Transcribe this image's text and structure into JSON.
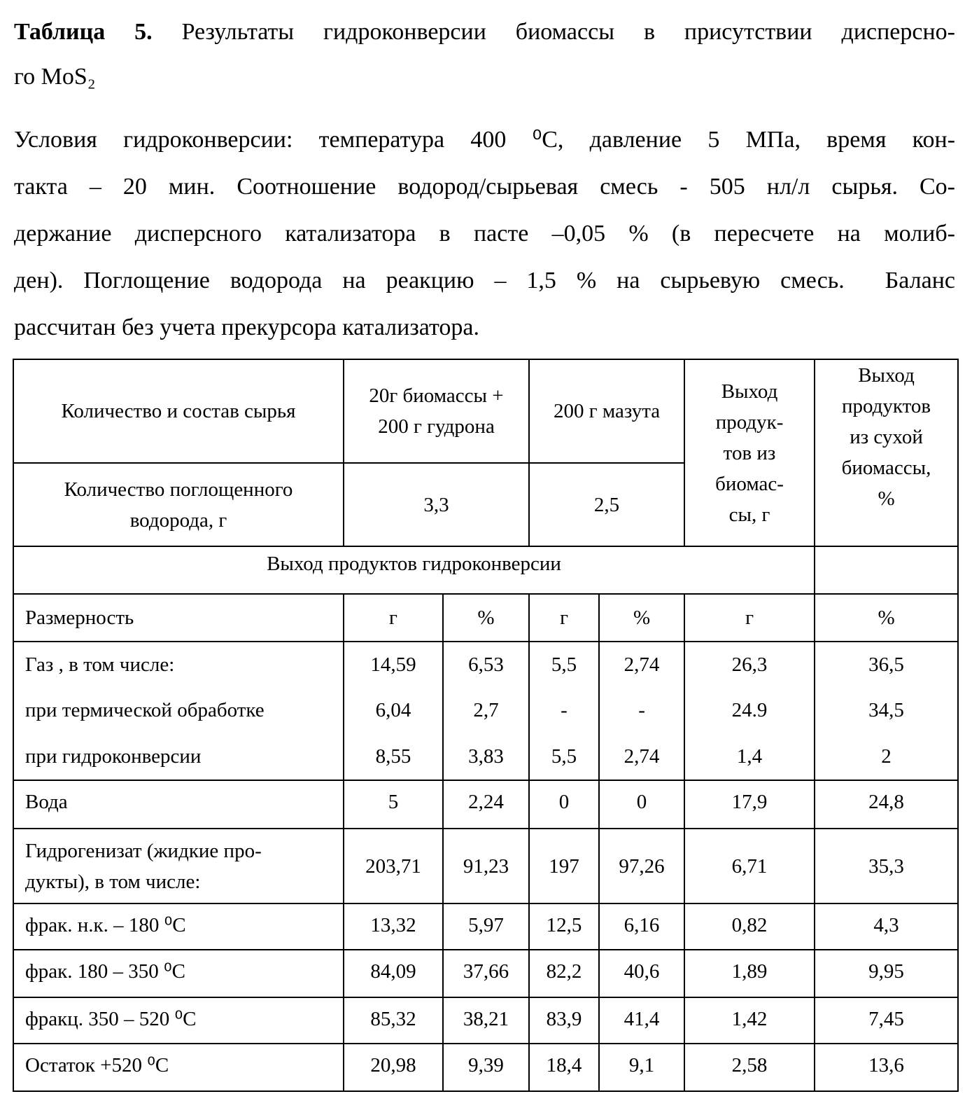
{
  "header": {
    "label": "Таблица 5.",
    "lines": [
      "Результаты гидроконверсии биомассы в присутствии дисперсно-",
      "го  MoS₂"
    ]
  },
  "conditions": {
    "lines": [
      "Условия гидроконверсии: температура 400 ⁰С, давление 5 МПа, время кон-",
      "такта – 20 мин. Соотношение водород/сырьевая смесь - 505 нл/л сырья. Со-",
      "держание дисперсного катализатора в пасте –0,05 % (в пересчете на молиб-",
      "ден). Поглощение водорода на реакцию – 1,5 % на сырьевую смесь.  Баланс",
      "рассчитан без учета прекурсора катализатора."
    ]
  },
  "table": {
    "feed_label": "Количество и состав  сырья",
    "feed_1": "20г биомассы +\n200 г гудрона",
    "feed_2": "200 г мазута",
    "yield_biomass": "Выход\nпродук-\nтов из\nбиомас-\nсы, г",
    "yield_dry": "Выход\nпродуктов\nиз сухой\nбиомассы,\n%",
    "hydrogen_label": "Количество поглощенного\nводорода, г",
    "hydrogen_1": "3,3",
    "hydrogen_2": "2,5",
    "section": "Выход продуктов гидроконверсии",
    "units_label": "Размерность",
    "units": [
      "г",
      "%",
      "г",
      "%",
      "г",
      "%"
    ],
    "gas_rows": [
      [
        "Газ , в том числе:",
        "14,59",
        "6,53",
        "5,5",
        "2,74",
        "26,3",
        "36,5"
      ],
      [
        " при термической обработке",
        "6,04",
        "2,7",
        "-",
        "-",
        "24.9",
        "34,5"
      ],
      [
        "при гидроконверсии",
        "8,55",
        "3,83",
        "5,5",
        "2,74",
        "1,4",
        "2"
      ]
    ],
    "rows": [
      [
        "Вода",
        "5",
        "2,24",
        "0",
        "0",
        "17,9",
        "24,8"
      ],
      [
        "Гидрогенизат (жидкие про-\nдукты), в том числе:",
        "203,71",
        "91,23",
        "197",
        "97,26",
        "6,71",
        "35,3"
      ],
      [
        "фрак. н.к. – 180 ⁰С",
        "13,32",
        "5,97",
        "12,5",
        "6,16",
        "0,82",
        "4,3"
      ],
      [
        "фрак.  180 – 350 ⁰С",
        "84,09",
        "37,66",
        "82,2",
        "40,6",
        "1,89",
        "9,95"
      ],
      [
        "фракц. 350 – 520 ⁰С",
        "85,32",
        "38,21",
        "83,9",
        "41,4",
        "1,42",
        "7,45"
      ],
      [
        "Остаток +520 ⁰С",
        "20,98",
        "9,39",
        "18,4",
        "9,1",
        "2,58",
        "13,6"
      ]
    ]
  }
}
